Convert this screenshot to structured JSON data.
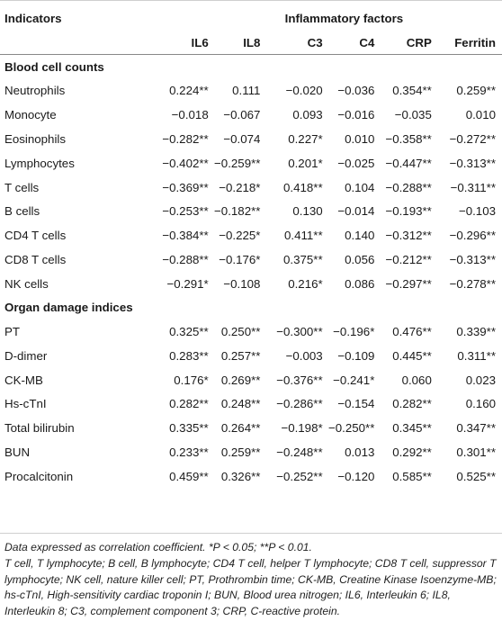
{
  "header": {
    "indicators_label": "Indicators",
    "group_label": "Inflammatory factors",
    "columns": [
      "IL6",
      "IL8",
      "C3",
      "C4",
      "CRP",
      "Ferritin"
    ]
  },
  "sections": [
    {
      "title": "Blood cell counts",
      "rows": [
        {
          "label": "Neutrophils",
          "values": [
            "0.224**",
            "0.111",
            "−0.020",
            "−0.036",
            "0.354**",
            "0.259**"
          ]
        },
        {
          "label": "Monocyte",
          "values": [
            "−0.018",
            "−0.067",
            "0.093",
            "−0.016",
            "−0.035",
            "0.010"
          ]
        },
        {
          "label": "Eosinophils",
          "values": [
            "−0.282**",
            "−0.074",
            "0.227*",
            "0.010",
            "−0.358**",
            "−0.272**"
          ]
        },
        {
          "label": "Lymphocytes",
          "values": [
            "−0.402**",
            "−0.259**",
            "0.201*",
            "−0.025",
            "−0.447**",
            "−0.313**"
          ]
        },
        {
          "label": "T cells",
          "values": [
            "−0.369**",
            "−0.218*",
            "0.418**",
            "0.104",
            "−0.288**",
            "−0.311**"
          ]
        },
        {
          "label": "B cells",
          "values": [
            "−0.253**",
            "−0.182**",
            "0.130",
            "−0.014",
            "−0.193**",
            "−0.103"
          ]
        },
        {
          "label": "CD4 T cells",
          "values": [
            "−0.384**",
            "−0.225*",
            "0.411**",
            "0.140",
            "−0.312**",
            "−0.296**"
          ]
        },
        {
          "label": "CD8 T cells",
          "values": [
            "−0.288**",
            "−0.176*",
            "0.375**",
            "0.056",
            "−0.212**",
            "−0.313**"
          ]
        },
        {
          "label": "NK cells",
          "values": [
            "−0.291*",
            "−0.108",
            "0.216*",
            "0.086",
            "−0.297**",
            "−0.278**"
          ]
        }
      ]
    },
    {
      "title": "Organ damage indices",
      "rows": [
        {
          "label": "PT",
          "values": [
            "0.325**",
            "0.250**",
            "−0.300**",
            "−0.196*",
            "0.476**",
            "0.339**"
          ]
        },
        {
          "label": "D-dimer",
          "values": [
            "0.283**",
            "0.257**",
            "−0.003",
            "−0.109",
            "0.445**",
            "0.311**"
          ]
        },
        {
          "label": "CK-MB",
          "values": [
            "0.176*",
            "0.269**",
            "−0.376**",
            "−0.241*",
            "0.060",
            "0.023"
          ]
        },
        {
          "label": "Hs-cTnI",
          "values": [
            "0.282**",
            "0.248**",
            "−0.286**",
            "−0.154",
            "0.282**",
            "0.160"
          ]
        },
        {
          "label": "Total bilirubin",
          "values": [
            "0.335**",
            "0.264**",
            "−0.198*",
            "−0.250**",
            "0.345**",
            "0.347**"
          ]
        },
        {
          "label": "BUN",
          "values": [
            "0.233**",
            "0.259**",
            "−0.248**",
            "0.013",
            "0.292**",
            "0.301**"
          ]
        },
        {
          "label": "Procalcitonin",
          "values": [
            "0.459**",
            "0.326**",
            "−0.252**",
            "−0.120",
            "0.585**",
            "0.525**"
          ]
        }
      ]
    }
  ],
  "footnotes": {
    "line1": "Data expressed as correlation coefficient. *P < 0.05; **P < 0.01.",
    "line2": "T cell, T lymphocyte; B cell, B lymphocyte; CD4 T cell, helper T lymphocyte; CD8 T cell, suppressor T lymphocyte; NK cell, nature killer cell; PT, Prothrombin time; CK-MB, Creatine Kinase Isoenzyme-MB; hs-cTnI, High-sensitivity cardiac troponin I; BUN, Blood urea nitrogen; IL6, Interleukin 6; IL8, Interleukin 8; C3, complement component 3; CRP, C-reactive protein."
  }
}
